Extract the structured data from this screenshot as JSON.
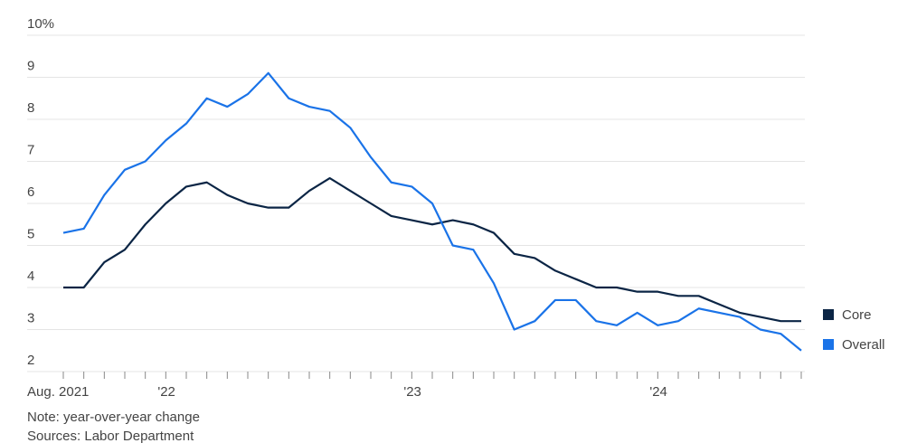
{
  "chart_data": {
    "type": "line",
    "categories": [
      "Aug. 2021",
      null,
      null,
      null,
      null,
      "'22",
      null,
      null,
      null,
      null,
      null,
      null,
      null,
      null,
      null,
      null,
      null,
      "'23",
      null,
      null,
      null,
      null,
      null,
      null,
      null,
      null,
      null,
      null,
      null,
      "'24",
      null,
      null,
      null,
      null,
      null,
      null,
      null
    ],
    "series": [
      {
        "name": "Core",
        "color": "#0b2545",
        "values": [
          4.0,
          4.0,
          4.6,
          4.9,
          5.5,
          6.0,
          6.4,
          6.5,
          6.2,
          6.0,
          5.9,
          5.9,
          6.3,
          6.6,
          6.3,
          6.0,
          5.7,
          5.6,
          5.5,
          5.6,
          5.5,
          5.3,
          4.8,
          4.7,
          4.4,
          4.2,
          4.0,
          4.0,
          3.9,
          3.9,
          3.8,
          3.8,
          3.6,
          3.4,
          3.3,
          3.2,
          3.2
        ]
      },
      {
        "name": "Overall",
        "color": "#1a73e8",
        "values": [
          5.3,
          5.4,
          6.2,
          6.8,
          7.0,
          7.5,
          7.9,
          8.5,
          8.3,
          8.6,
          9.1,
          8.5,
          8.3,
          8.2,
          7.8,
          7.1,
          6.5,
          6.4,
          6.0,
          5.0,
          4.9,
          4.1,
          3.0,
          3.2,
          3.7,
          3.7,
          3.2,
          3.1,
          3.4,
          3.1,
          3.2,
          3.5,
          3.4,
          3.3,
          3.0,
          2.9,
          2.5
        ]
      }
    ],
    "ylim": [
      2,
      10
    ],
    "yticks": [
      2,
      3,
      4,
      5,
      6,
      7,
      8,
      9,
      {
        "value": 10,
        "label": "10%"
      }
    ],
    "grid": true,
    "legend": "right",
    "notes": [
      "Note: year-over-year change",
      "Sources: Labor Department"
    ]
  }
}
